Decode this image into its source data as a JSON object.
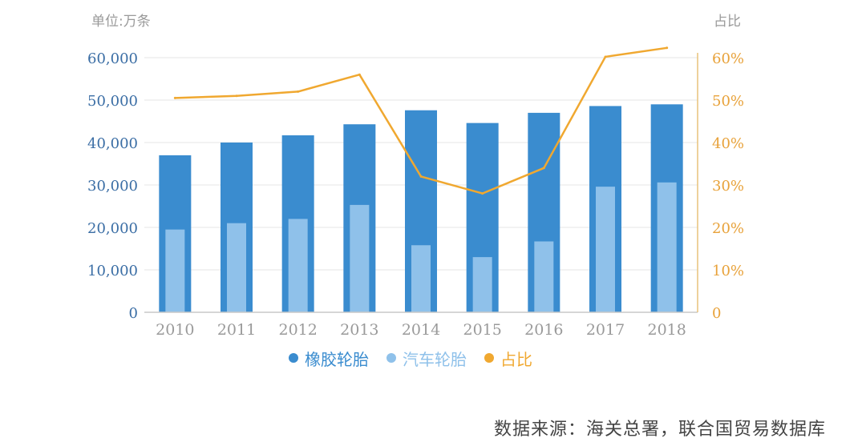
{
  "chart_data": {
    "type": "bar",
    "left_axis_unit": "单位:万条",
    "right_axis_unit": "占比",
    "categories": [
      "2010",
      "2011",
      "2012",
      "2013",
      "2014",
      "2015",
      "2016",
      "2017",
      "2018"
    ],
    "series": [
      {
        "name": "橡胶轮胎",
        "type": "bar",
        "axis": "left",
        "color": "#3a8ccf",
        "values": [
          37000,
          40000,
          41700,
          44300,
          47600,
          44600,
          47000,
          48600,
          49000
        ]
      },
      {
        "name": "汽车轮胎",
        "type": "bar",
        "axis": "left",
        "color": "#8fc1ea",
        "values": [
          19500,
          21000,
          22000,
          25300,
          15800,
          13000,
          16700,
          29600,
          30600
        ]
      },
      {
        "name": "占比",
        "type": "line",
        "axis": "right",
        "color": "#f0a830",
        "values": [
          50.5,
          51.0,
          52.0,
          56.0,
          32.0,
          28.0,
          34.0,
          60.2,
          62.3
        ]
      }
    ],
    "y_left": {
      "min": 0,
      "max": 60000,
      "ticks": [
        0,
        10000,
        20000,
        30000,
        40000,
        50000,
        60000
      ],
      "tick_labels": [
        "0",
        "10,000",
        "20,000",
        "30,000",
        "40,000",
        "50,000",
        "60,000"
      ]
    },
    "y_right": {
      "min": 0,
      "max": 60,
      "ticks": [
        0,
        10,
        20,
        30,
        40,
        50,
        60
      ],
      "tick_labels": [
        "0",
        "10%",
        "20%",
        "30%",
        "40%",
        "50%",
        "60%"
      ]
    },
    "grid": true,
    "legend_position": "bottom"
  },
  "source_note": "数据来源：海关总署，联合国贸易数据库",
  "colors": {
    "left_axis_text": "#3b6ea5",
    "right_axis_text": "#e8a23a",
    "category_text": "#9a9a9a",
    "grid": "#e6e6e6"
  }
}
